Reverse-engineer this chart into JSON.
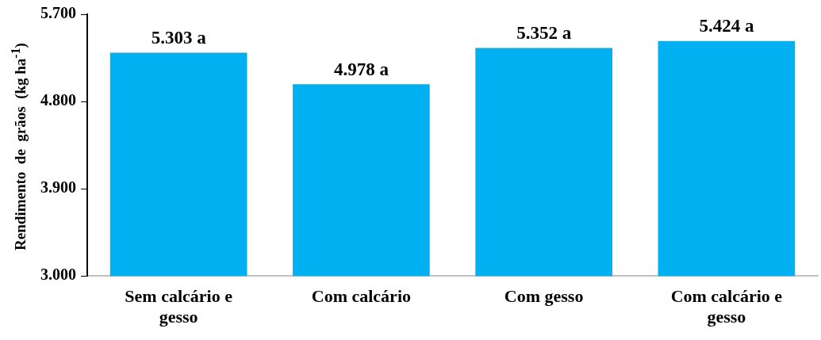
{
  "chart_data": {
    "type": "bar",
    "ylabel": "Rendimento  de  grãos  (kg ha$^{-1}$)",
    "categories": [
      "Sem calcário e gesso",
      "Com calcário",
      "Com gesso",
      "Com calcário e gesso"
    ],
    "values": [
      5303,
      4978,
      5352,
      5424
    ],
    "value_labels": [
      "5.303 a",
      "4.978 a",
      "5.352 a",
      "5.424 a"
    ],
    "color": "#00b0f0",
    "ylim": [
      3000,
      5700
    ],
    "yticks": [
      {
        "value": 3000,
        "label": "3.000"
      },
      {
        "value": 3900,
        "label": "3.900"
      },
      {
        "value": 4800,
        "label": "4.800"
      },
      {
        "value": 5700,
        "label": "5.700"
      }
    ],
    "grid": false,
    "legend": false
  }
}
